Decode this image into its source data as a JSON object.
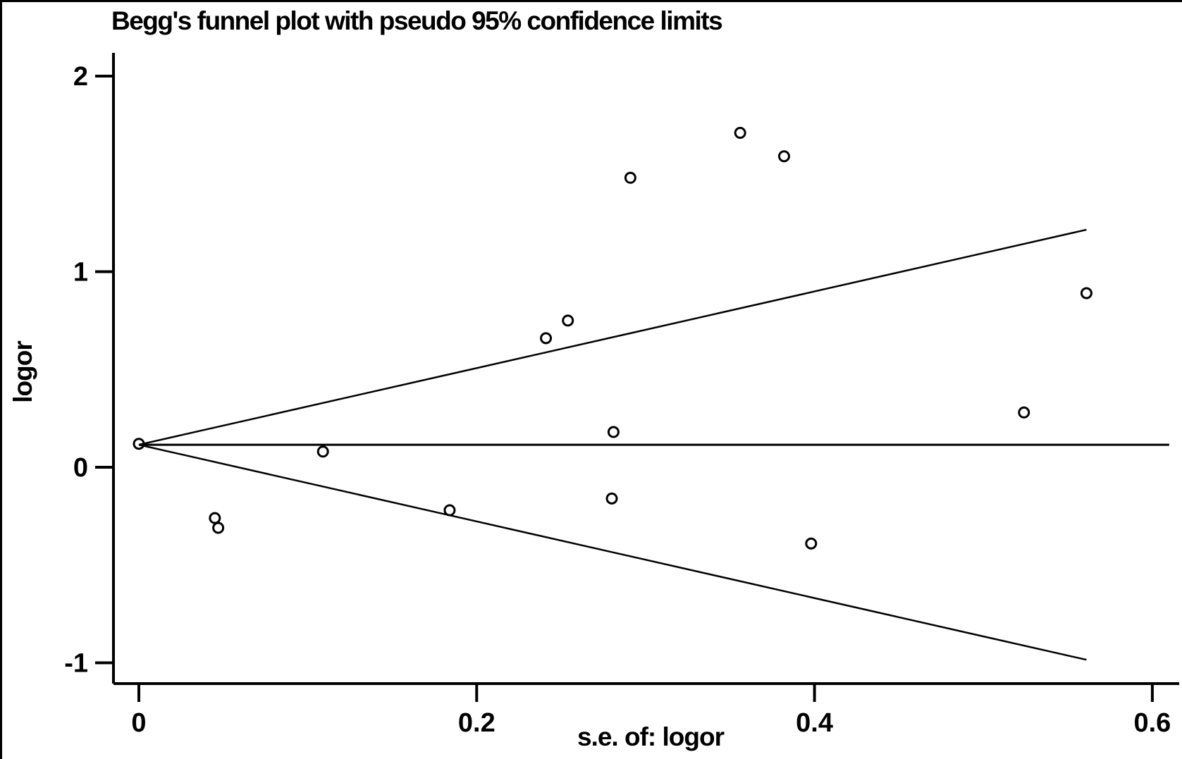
{
  "chart_data": {
    "type": "scatter",
    "title": "Begg's funnel plot with pseudo 95% confidence limits",
    "xlabel": "s.e. of: logor",
    "ylabel": "logor",
    "xlim": [
      0,
      0.62
    ],
    "ylim": [
      -1.11,
      2.12
    ],
    "xticks": [
      0,
      0.2,
      0.4,
      0.6
    ],
    "xtick_labels": [
      "0",
      "0.2",
      "0.4",
      "0.6"
    ],
    "yticks": [
      -1,
      0,
      1,
      2
    ],
    "ytick_labels": [
      "-1",
      "0",
      "1",
      "2"
    ],
    "grid": false,
    "legend": "none",
    "marker": "open-circle",
    "points": [
      {
        "se": 0.0,
        "logor": 0.12
      },
      {
        "se": 0.045,
        "logor": -0.26
      },
      {
        "se": 0.047,
        "logor": -0.31
      },
      {
        "se": 0.109,
        "logor": 0.08
      },
      {
        "se": 0.184,
        "logor": -0.22
      },
      {
        "se": 0.241,
        "logor": 0.66
      },
      {
        "se": 0.254,
        "logor": 0.75
      },
      {
        "se": 0.28,
        "logor": -0.16
      },
      {
        "se": 0.281,
        "logor": 0.18
      },
      {
        "se": 0.291,
        "logor": 1.48
      },
      {
        "se": 0.356,
        "logor": 1.71
      },
      {
        "se": 0.382,
        "logor": 1.59
      },
      {
        "se": 0.398,
        "logor": -0.39
      },
      {
        "se": 0.524,
        "logor": 0.28
      },
      {
        "se": 0.561,
        "logor": 0.89
      }
    ],
    "funnel": {
      "pooled_logor": 0.115,
      "z": 1.96,
      "limit_se_end": 0.561,
      "center_line_se_end": 0.61
    }
  }
}
